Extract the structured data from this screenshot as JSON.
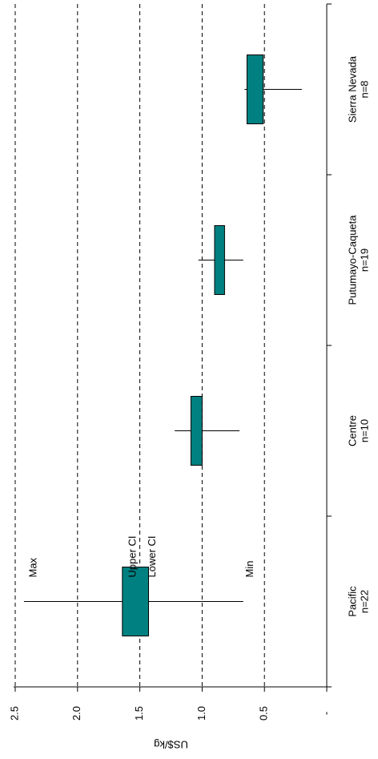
{
  "chart_data": {
    "type": "box",
    "orientation": "rotated",
    "ylabel": "US$/kg",
    "ylim": [
      0,
      2.5
    ],
    "yticks": [
      {
        "value": 2.5,
        "label": "2.5"
      },
      {
        "value": 2.0,
        "label": "2.0"
      },
      {
        "value": 1.5,
        "label": "1.5"
      },
      {
        "value": 1.0,
        "label": "1.0"
      },
      {
        "value": 0.5,
        "label": "0.5"
      },
      {
        "value": 0.0,
        "label": "-"
      }
    ],
    "grid": "dashed",
    "categories": [
      {
        "name": "Pacific",
        "n_label": "n=22",
        "max": 2.43,
        "upper_ci": 1.64,
        "lower_ci": 1.43,
        "min": 0.67
      },
      {
        "name": "Centre",
        "n_label": "n=10",
        "max": 1.22,
        "upper_ci": 1.09,
        "lower_ci": 1.0,
        "min": 0.7
      },
      {
        "name": "Putumayo-Caqueta",
        "n_label": "n=19",
        "max": 1.03,
        "upper_ci": 0.9,
        "lower_ci": 0.82,
        "min": 0.67
      },
      {
        "name": "Sierra Nevada",
        "n_label": "n=8",
        "max": 0.66,
        "upper_ci": 0.64,
        "lower_ci": 0.51,
        "min": 0.2
      }
    ],
    "annotations": {
      "max": "Max",
      "upper_ci": "Upper CI",
      "lower_ci": "Lower CI",
      "min": "Min"
    },
    "box_color": "#008080"
  }
}
